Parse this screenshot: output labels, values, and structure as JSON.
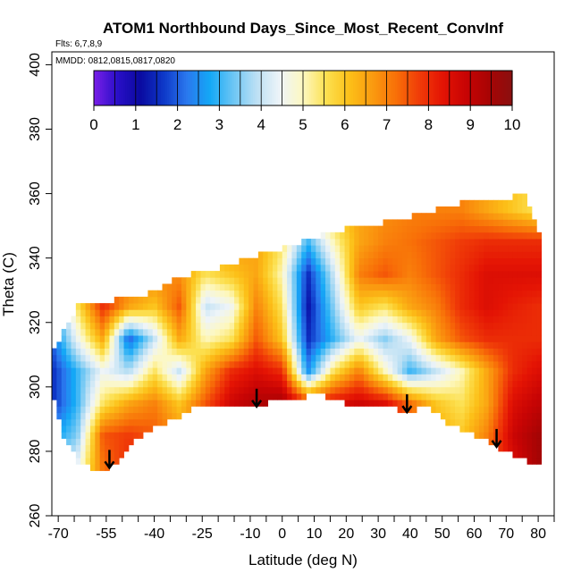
{
  "chart_data": {
    "type": "heatmap",
    "title": "ATOM1 Northbound Days_Since_Most_Recent_ConvInf",
    "flights_note": "Flts: 6,7,8,9",
    "dates_note": "MMDD: 0812,0815,0817,0820",
    "xlabel": "Latitude (deg N)",
    "ylabel": "Theta (C)",
    "xlim": [
      -72,
      85
    ],
    "ylim": [
      260,
      404
    ],
    "x_ticks_labeled": [
      -70,
      -55,
      -40,
      -25,
      -10,
      0,
      10,
      20,
      30,
      40,
      50,
      60,
      70,
      80
    ],
    "x_ticks_minor": [
      -65,
      -60,
      -50,
      -45,
      -35,
      -30,
      -20,
      -15,
      -5,
      5,
      15,
      25,
      35,
      45,
      55,
      65,
      75,
      85
    ],
    "y_ticks": [
      260,
      280,
      300,
      320,
      340,
      360,
      380,
      400
    ],
    "colorbar": {
      "range": [
        0,
        10
      ],
      "ticks": [
        0,
        1,
        2,
        3,
        4,
        5,
        6,
        7,
        8,
        9,
        10
      ],
      "colors": [
        "#7a1fe8",
        "#2a0fc8",
        "#0a0aa0",
        "#0e38c8",
        "#2a78ee",
        "#14a8f6",
        "#6cc6f4",
        "#bce0f4",
        "#eef4f8",
        "#fdf8c0",
        "#fce050",
        "#fcc018",
        "#fa9a10",
        "#f87008",
        "#f03c08",
        "#e41404",
        "#c80404",
        "#a80404",
        "#8a1010"
      ]
    },
    "envelope": {
      "lat": [
        -72,
        -68,
        -64,
        -60,
        -56,
        -52,
        -48,
        -44,
        -40,
        -36,
        -32,
        -28,
        -24,
        -20,
        -16,
        -12,
        -8,
        -4,
        0,
        4,
        8,
        12,
        16,
        20,
        24,
        28,
        32,
        36,
        40,
        44,
        48,
        52,
        56,
        60,
        64,
        68,
        72,
        76,
        80
      ],
      "theta_top": [
        310,
        318,
        325,
        326,
        326,
        327,
        327,
        328,
        330,
        332,
        334,
        335,
        336,
        337,
        338,
        340,
        341,
        342,
        343,
        344,
        346,
        347,
        348,
        349,
        349,
        350,
        351,
        352,
        353,
        354,
        355,
        356,
        357,
        358,
        358,
        358,
        359,
        360,
        347
      ],
      "theta_bottom": [
        298,
        284,
        277,
        275,
        274,
        276,
        281,
        285,
        287,
        289,
        291,
        293,
        295,
        295,
        294,
        294,
        294,
        295,
        296,
        297,
        297,
        298,
        296,
        295,
        294,
        294,
        294,
        293,
        292,
        294,
        292,
        288,
        287,
        285,
        283,
        281,
        279,
        277,
        276
      ]
    },
    "days_field": {
      "lat": [
        -72,
        -64,
        -56,
        -48,
        -40,
        -32,
        -24,
        -16,
        -8,
        0,
        8,
        16,
        24,
        32,
        40,
        48,
        56,
        64,
        72,
        80
      ],
      "theta": [
        275,
        285,
        295,
        305,
        315,
        325,
        335,
        345,
        355
      ],
      "values": [
        [
          3.5,
          4.5,
          7.2,
          8.0,
          8.5,
          7.0,
          6.5,
          8.0,
          8.5,
          8.8,
          9.0,
          8.8,
          8.5,
          8.0,
          7.0,
          6.5,
          7.0,
          7.5,
          8.5,
          9.5
        ],
        [
          2.5,
          3.5,
          7.5,
          7.8,
          7.5,
          6.8,
          7.0,
          8.5,
          9.0,
          9.2,
          9.0,
          9.0,
          8.5,
          8.2,
          7.5,
          6.5,
          6.0,
          7.0,
          8.8,
          9.5
        ],
        [
          1.5,
          3.0,
          5.5,
          6.5,
          7.0,
          6.0,
          7.5,
          8.8,
          9.3,
          9.5,
          8.0,
          8.5,
          8.8,
          8.5,
          7.2,
          6.0,
          5.5,
          6.5,
          8.5,
          9.0
        ],
        [
          1.5,
          3.0,
          4.5,
          3.8,
          5.5,
          4.0,
          6.5,
          8.0,
          8.5,
          8.0,
          2.5,
          5.5,
          7.0,
          5.0,
          3.0,
          4.0,
          5.0,
          6.5,
          8.0,
          8.5
        ],
        [
          2.0,
          4.5,
          6.5,
          2.0,
          4.0,
          6.5,
          5.0,
          5.5,
          7.5,
          6.0,
          1.5,
          3.0,
          4.5,
          3.5,
          4.5,
          6.5,
          7.5,
          8.0,
          8.0,
          8.0
        ],
        [
          2.5,
          5.5,
          8.0,
          6.5,
          6.0,
          7.5,
          4.0,
          4.5,
          7.0,
          5.5,
          1.2,
          3.5,
          6.0,
          5.5,
          6.5,
          7.0,
          8.0,
          8.5,
          8.2,
          8.0
        ],
        [
          5.0,
          6.5,
          7.0,
          7.5,
          7.0,
          6.8,
          5.5,
          6.0,
          6.5,
          5.0,
          1.5,
          4.0,
          7.0,
          7.5,
          7.0,
          7.5,
          8.0,
          8.5,
          8.5,
          8.5
        ],
        [
          5.5,
          6.0,
          6.2,
          6.5,
          6.5,
          6.5,
          6.5,
          6.8,
          6.5,
          5.5,
          3.0,
          5.0,
          6.5,
          7.0,
          7.2,
          7.5,
          7.8,
          8.0,
          8.0,
          8.0
        ],
        [
          6.0,
          6.0,
          6.0,
          6.2,
          6.2,
          6.2,
          6.3,
          6.4,
          6.5,
          6.2,
          5.5,
          6.0,
          6.5,
          6.8,
          7.0,
          7.0,
          7.0,
          6.5,
          6.0,
          5.5
        ]
      ]
    },
    "arrows_lat": [
      -54,
      -8,
      39,
      67
    ]
  }
}
